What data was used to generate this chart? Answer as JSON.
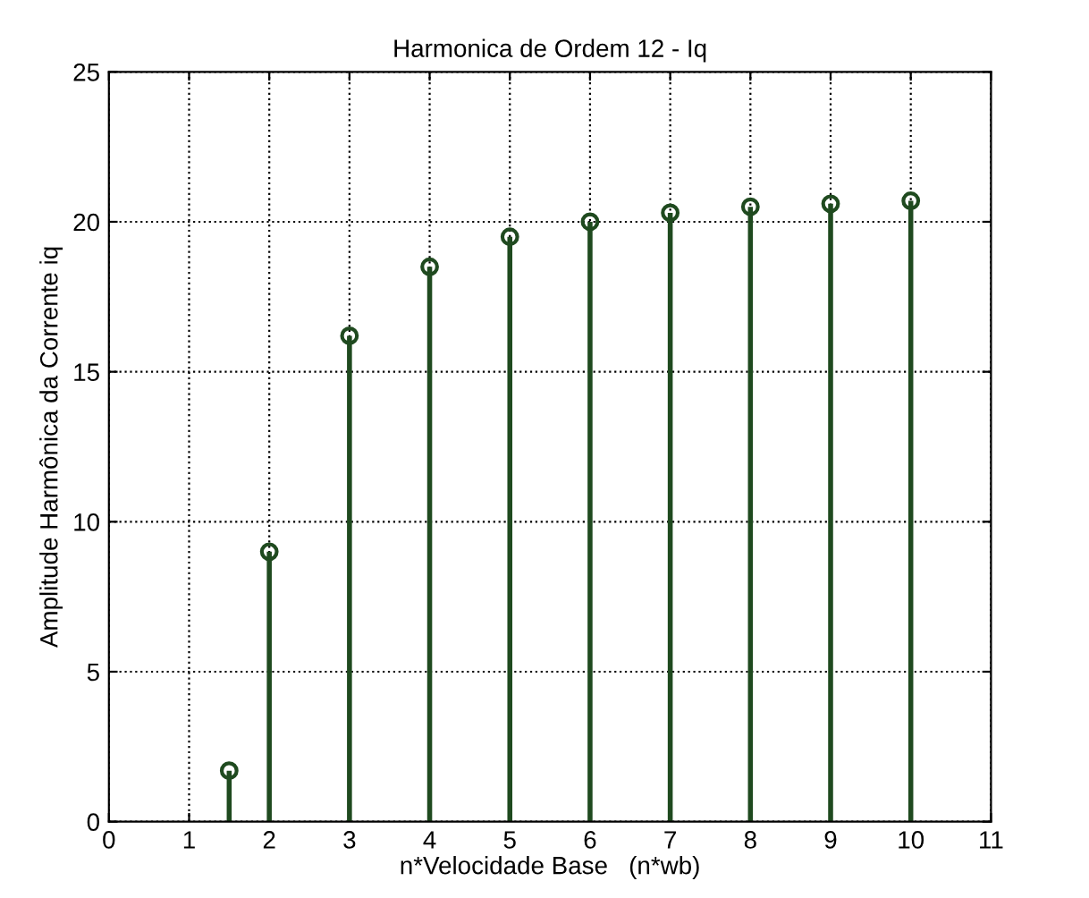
{
  "chart_data": {
    "type": "lollipop",
    "title": "Harmonica de Ordem 12 - Iq",
    "xlabel": "n*Velocidade Base   (n*wb)",
    "ylabel": "Amplitude Harmônica da Corrente iq",
    "x": [
      1.5,
      2,
      3,
      4,
      5,
      6,
      7,
      8,
      9,
      10
    ],
    "values": [
      1.7,
      9.0,
      16.2,
      18.5,
      19.5,
      20.0,
      20.3,
      20.5,
      20.6,
      20.7
    ],
    "color": "#1f4a1f",
    "marker": "circle",
    "line_style": "solid",
    "grid": true,
    "xlim": [
      0,
      11
    ],
    "xticks": [
      0,
      1,
      2,
      3,
      4,
      5,
      6,
      7,
      8,
      9,
      10,
      11
    ],
    "ylim": [
      0,
      25
    ],
    "yticks": [
      0,
      5,
      10,
      15,
      20,
      25
    ]
  }
}
